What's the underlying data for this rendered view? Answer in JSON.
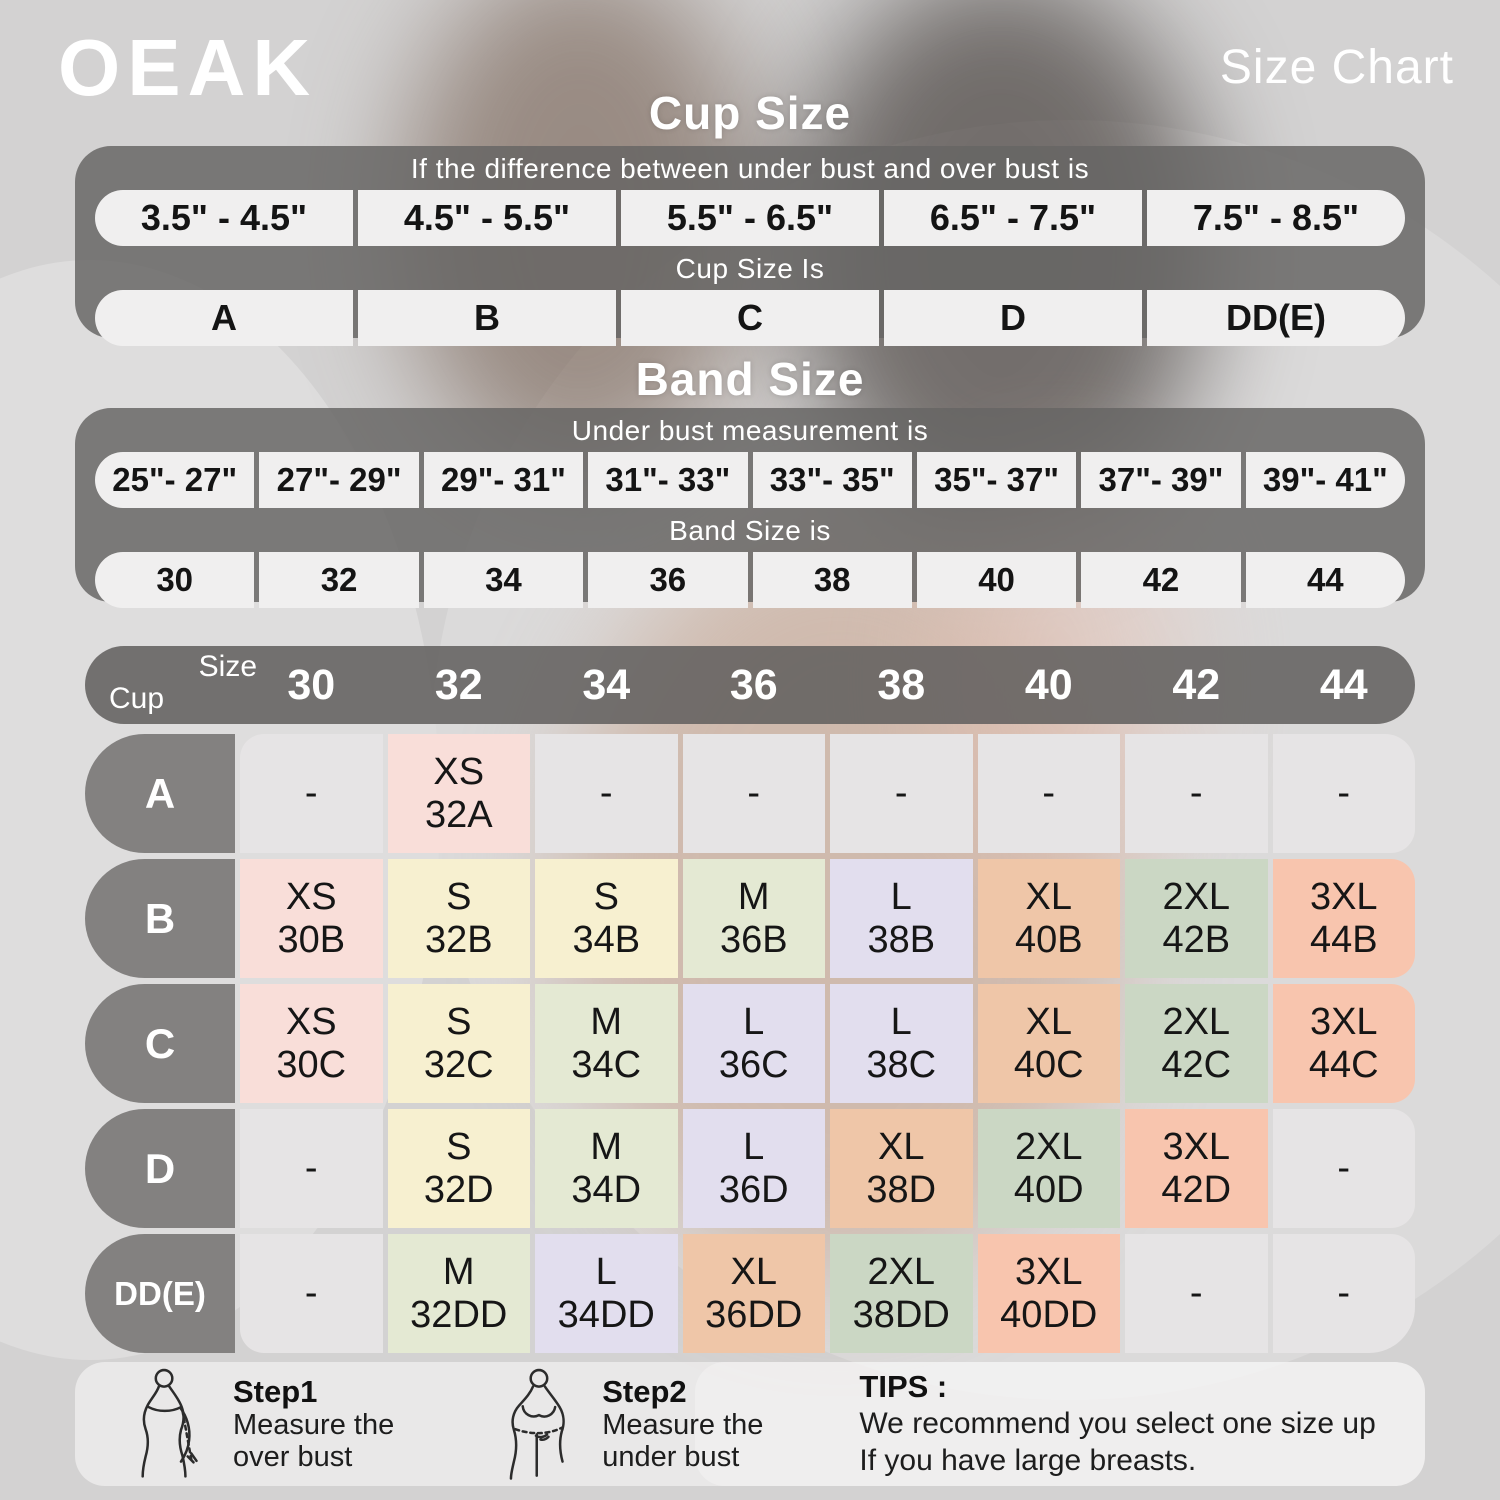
{
  "brand": "OEAK",
  "page_title": "Size Chart",
  "cup_size_section": {
    "title": "Cup Size",
    "header": "If the  difference between under bust and over bust is",
    "ranges": [
      "3.5\" -  4.5\"",
      "4.5\" -  5.5\"",
      "5.5\" -  6.5\"",
      "6.5\" -  7.5\"",
      "7.5\" -  8.5\""
    ],
    "subheader": "Cup Size Is",
    "cups": [
      "A",
      "B",
      "C",
      "D",
      "DD(E)"
    ]
  },
  "band_size_section": {
    "title": "Band Size",
    "header": "Under bust measurement is",
    "ranges": [
      "25\"- 27\"",
      "27\"- 29\"",
      "29\"- 31\"",
      "31\"- 33\"",
      "33\"- 35\"",
      "35\"- 37\"",
      "37\"- 39\"",
      "39\"- 41\""
    ],
    "subheader": "Band Size is",
    "bands": [
      "30",
      "32",
      "34",
      "36",
      "38",
      "40",
      "42",
      "44"
    ]
  },
  "matrix": {
    "corner_top": "Size",
    "corner_bottom": "Cup",
    "columns": [
      "30",
      "32",
      "34",
      "36",
      "38",
      "40",
      "42",
      "44"
    ],
    "rows": [
      {
        "label": "A",
        "cells": [
          {
            "top": "-",
            "bottom": "",
            "tier": "none"
          },
          {
            "top": "XS",
            "bottom": "32A",
            "tier": "xs"
          },
          {
            "top": "-",
            "bottom": "",
            "tier": "none"
          },
          {
            "top": "-",
            "bottom": "",
            "tier": "none"
          },
          {
            "top": "-",
            "bottom": "",
            "tier": "none"
          },
          {
            "top": "-",
            "bottom": "",
            "tier": "none"
          },
          {
            "top": "-",
            "bottom": "",
            "tier": "none"
          },
          {
            "top": "-",
            "bottom": "",
            "tier": "none"
          }
        ]
      },
      {
        "label": "B",
        "cells": [
          {
            "top": "XS",
            "bottom": "30B",
            "tier": "xs"
          },
          {
            "top": "S",
            "bottom": "32B",
            "tier": "s"
          },
          {
            "top": "S",
            "bottom": "34B",
            "tier": "s"
          },
          {
            "top": "M",
            "bottom": "36B",
            "tier": "m"
          },
          {
            "top": "L",
            "bottom": "38B",
            "tier": "l"
          },
          {
            "top": "XL",
            "bottom": "40B",
            "tier": "xl"
          },
          {
            "top": "2XL",
            "bottom": "42B",
            "tier": "2xl"
          },
          {
            "top": "3XL",
            "bottom": "44B",
            "tier": "3xl"
          }
        ]
      },
      {
        "label": "C",
        "cells": [
          {
            "top": "XS",
            "bottom": "30C",
            "tier": "xs"
          },
          {
            "top": "S",
            "bottom": "32C",
            "tier": "s"
          },
          {
            "top": "M",
            "bottom": "34C",
            "tier": "m"
          },
          {
            "top": "L",
            "bottom": "36C",
            "tier": "l"
          },
          {
            "top": "L",
            "bottom": "38C",
            "tier": "l"
          },
          {
            "top": "XL",
            "bottom": "40C",
            "tier": "xl"
          },
          {
            "top": "2XL",
            "bottom": "42C",
            "tier": "2xl"
          },
          {
            "top": "3XL",
            "bottom": "44C",
            "tier": "3xl"
          }
        ]
      },
      {
        "label": "D",
        "cells": [
          {
            "top": "-",
            "bottom": "",
            "tier": "none"
          },
          {
            "top": "S",
            "bottom": "32D",
            "tier": "s"
          },
          {
            "top": "M",
            "bottom": "34D",
            "tier": "m"
          },
          {
            "top": "L",
            "bottom": "36D",
            "tier": "l"
          },
          {
            "top": "XL",
            "bottom": "38D",
            "tier": "xl"
          },
          {
            "top": "2XL",
            "bottom": "40D",
            "tier": "2xl"
          },
          {
            "top": "3XL",
            "bottom": "42D",
            "tier": "3xl"
          },
          {
            "top": "-",
            "bottom": "",
            "tier": "none"
          }
        ]
      },
      {
        "label": "DD(E)",
        "cells": [
          {
            "top": "-",
            "bottom": "",
            "tier": "none"
          },
          {
            "top": "M",
            "bottom": "32DD",
            "tier": "m"
          },
          {
            "top": "L",
            "bottom": "34DD",
            "tier": "l"
          },
          {
            "top": "XL",
            "bottom": "36DD",
            "tier": "xl"
          },
          {
            "top": "2XL",
            "bottom": "38DD",
            "tier": "2xl"
          },
          {
            "top": "3XL",
            "bottom": "40DD",
            "tier": "3xl"
          },
          {
            "top": "-",
            "bottom": "",
            "tier": "none"
          },
          {
            "top": "-",
            "bottom": "",
            "tier": "none"
          }
        ]
      }
    ]
  },
  "footer": {
    "step1_title": "Step1",
    "step1_line1": "Measure the",
    "step1_line2": "over bust",
    "step2_title": "Step2",
    "step2_line1": "Measure the",
    "step2_line2": "under bust",
    "tips_title": "TIPS :",
    "tips_line1": "We recommend you select one size up",
    "tips_line2": "If you have large breasts."
  },
  "colors": {
    "tiers": {
      "none": "#e6e4e5",
      "xs": "#f9ded9",
      "s": "#f7f0d0",
      "m": "#e4e9d3",
      "l": "#e2deee",
      "xl": "#efc6a8",
      "2xl": "#cbd7c4",
      "3xl": "#f8c5ae"
    },
    "panel_gray": "#676564",
    "heading_white": "#ffffff",
    "cell_text": "#161616"
  },
  "chart_data": [
    {
      "type": "table",
      "title": "Cup Size",
      "header": "If the difference between under bust and over bust is",
      "columns": [
        "3.5\" - 4.5\"",
        "4.5\" - 5.5\"",
        "5.5\" - 6.5\"",
        "6.5\" - 7.5\"",
        "7.5\" - 8.5\""
      ],
      "row_label": "Cup Size Is",
      "rows": [
        [
          "A",
          "B",
          "C",
          "D",
          "DD(E)"
        ]
      ]
    },
    {
      "type": "table",
      "title": "Band Size",
      "header": "Under bust measurement is",
      "columns": [
        "25\"- 27\"",
        "27\"- 29\"",
        "29\"- 31\"",
        "31\"- 33\"",
        "33\"- 35\"",
        "35\"- 37\"",
        "37\"- 39\"",
        "39\"- 41\""
      ],
      "row_label": "Band Size is",
      "rows": [
        [
          "30",
          "32",
          "34",
          "36",
          "38",
          "40",
          "42",
          "44"
        ]
      ]
    },
    {
      "type": "table",
      "title": "Cup x Band product size matrix",
      "columns": [
        "Cup\\Size",
        "30",
        "32",
        "34",
        "36",
        "38",
        "40",
        "42",
        "44"
      ],
      "rows": [
        [
          "A",
          "-",
          "XS 32A",
          "-",
          "-",
          "-",
          "-",
          "-",
          "-"
        ],
        [
          "B",
          "XS 30B",
          "S 32B",
          "S 34B",
          "M 36B",
          "L 38B",
          "XL 40B",
          "2XL 42B",
          "3XL 44B"
        ],
        [
          "C",
          "XS 30C",
          "S 32C",
          "M 34C",
          "L 36C",
          "L 38C",
          "XL 40C",
          "2XL 42C",
          "3XL 44C"
        ],
        [
          "D",
          "-",
          "S 32D",
          "M 34D",
          "L 36D",
          "XL 38D",
          "2XL 40D",
          "3XL 42D",
          "-"
        ],
        [
          "DD(E)",
          "-",
          "M 32DD",
          "L 34DD",
          "XL 36DD",
          "2XL 38DD",
          "3XL 40DD",
          "-",
          "-"
        ]
      ]
    }
  ]
}
